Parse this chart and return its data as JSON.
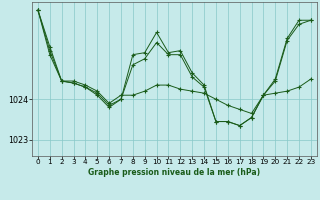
{
  "background_color": "#c6eaea",
  "grid_color": "#88c8c8",
  "line_color": "#1a5c1a",
  "title": "Graphe pression niveau de la mer (hPa)",
  "xlim": [
    -0.5,
    23.5
  ],
  "ylim": [
    1022.6,
    1026.4
  ],
  "yticks": [
    1023,
    1024
  ],
  "xticks": [
    0,
    1,
    2,
    3,
    4,
    5,
    6,
    7,
    8,
    9,
    10,
    11,
    12,
    13,
    14,
    15,
    16,
    17,
    18,
    19,
    20,
    21,
    22,
    23
  ],
  "series": [
    {
      "x": [
        0,
        1,
        2,
        3,
        4,
        5,
        6,
        7,
        8,
        9,
        10,
        11,
        12,
        13,
        14,
        15,
        16,
        17,
        18,
        19,
        20,
        21,
        22,
        23
      ],
      "y": [
        1026.2,
        1025.3,
        1024.45,
        1024.45,
        1024.35,
        1024.2,
        1023.9,
        1024.1,
        1024.1,
        1024.2,
        1024.35,
        1024.35,
        1024.25,
        1024.2,
        1024.15,
        1024.0,
        1023.85,
        1023.75,
        1023.65,
        1024.1,
        1024.15,
        1024.2,
        1024.3,
        1024.5
      ]
    },
    {
      "x": [
        0,
        1,
        2,
        3,
        4,
        5,
        6,
        7,
        8,
        9,
        10,
        11,
        12,
        13,
        14,
        15,
        16,
        17,
        18,
        19,
        20,
        21,
        22,
        23
      ],
      "y": [
        1026.2,
        1025.2,
        1024.45,
        1024.4,
        1024.3,
        1024.15,
        1023.85,
        1024.0,
        1024.85,
        1025.0,
        1025.4,
        1025.1,
        1025.1,
        1024.55,
        1024.3,
        1023.45,
        1023.45,
        1023.35,
        1023.55,
        1024.1,
        1024.45,
        1025.45,
        1025.85,
        1025.95
      ]
    },
    {
      "x": [
        0,
        1,
        2,
        3,
        4,
        5,
        6,
        7,
        8,
        9,
        10,
        11,
        12,
        13,
        14,
        15,
        16,
        17,
        18,
        19,
        20,
        21,
        22,
        23
      ],
      "y": [
        1026.2,
        1025.1,
        1024.45,
        1024.4,
        1024.3,
        1024.1,
        1023.8,
        1024.0,
        1025.1,
        1025.15,
        1025.65,
        1025.15,
        1025.2,
        1024.65,
        1024.35,
        1023.45,
        1023.45,
        1023.35,
        1023.55,
        1024.1,
        1024.5,
        1025.5,
        1025.95,
        1025.95
      ]
    }
  ]
}
